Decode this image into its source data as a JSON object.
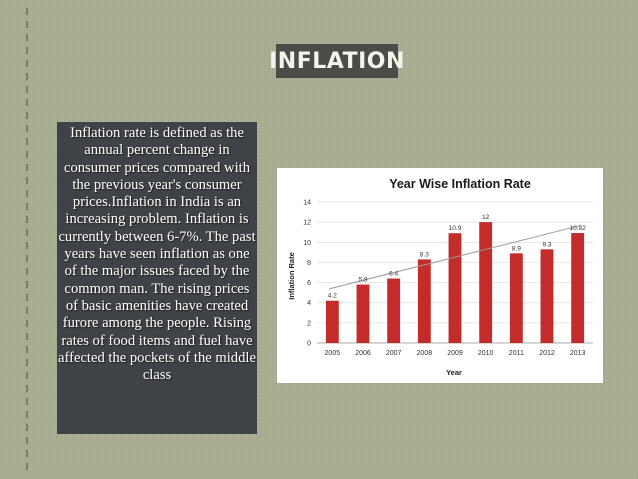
{
  "slide": {
    "title": "INFLATION",
    "body": "Inflation rate is defined as the annual percent change in consumer prices compared with the previous year's consumer prices.Inflation in India is an increasing problem. Inflation is currently between 6-7%. The past years have seen inflation as one of the major issues faced by the common man. The rising prices of basic amenities have created furore among the people. Rising rates of food items and fuel have affected the pockets of the middle class"
  },
  "colors": {
    "background": "#a9ad90",
    "title_bg": "#4a4c48",
    "text_box_bg": "#3f4347",
    "bar": "#c42b2b",
    "trendline": "#9a9a9a"
  },
  "chart_data": {
    "type": "bar",
    "title": "Year Wise Inflation Rate",
    "xlabel": "Year",
    "ylabel": "Inflation Rate",
    "categories": [
      "2005",
      "2006",
      "2007",
      "2008",
      "2009",
      "2010",
      "2011",
      "2012",
      "2013"
    ],
    "values": [
      4.2,
      5.8,
      6.4,
      8.3,
      10.9,
      12,
      8.9,
      9.3,
      10.92
    ],
    "value_labels": [
      "4.2",
      "5.8",
      "6.4",
      "8.3",
      "10.9",
      "12",
      "8.9",
      "9.3",
      "10.92"
    ],
    "yticks": [
      "0",
      "2",
      "4",
      "6",
      "8",
      "10",
      "12",
      "14"
    ],
    "ylim": [
      0,
      14
    ],
    "grid": true,
    "trendline": true,
    "legend": "none"
  }
}
